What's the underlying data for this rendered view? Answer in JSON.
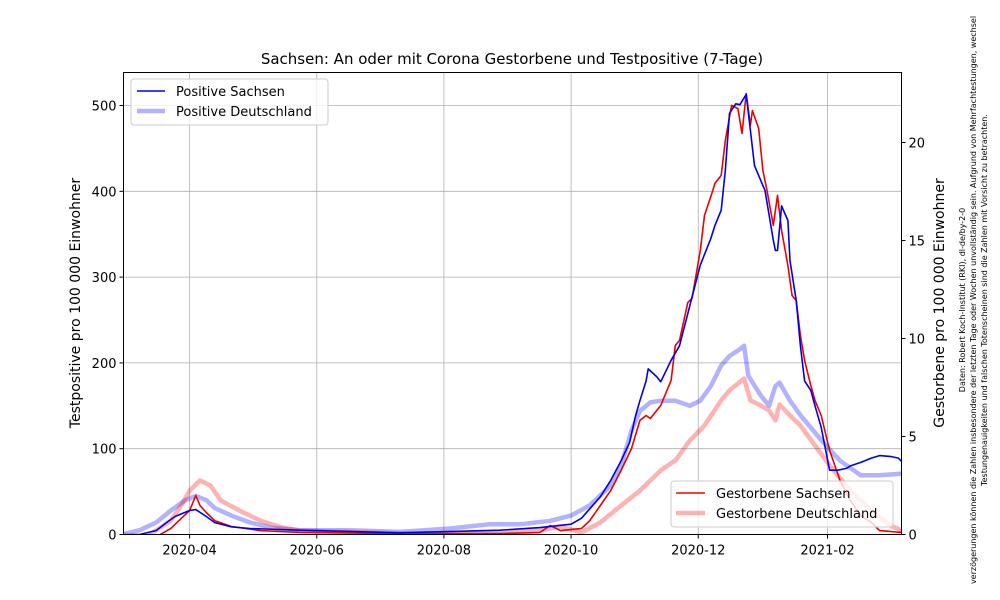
{
  "chart_data": {
    "type": "line",
    "title": "Sachsen: An oder mit Corona Gestorbene und Testpositive (7-Tage)",
    "ylabel": "Testpositive pro 100 000 Einwohner",
    "y2label": "Gestorbene pro 100 000 Einwohner",
    "x_unit": "days since 2020-03-01",
    "xlim": [
      -0.7,
      372.5
    ],
    "ylim": [
      0,
      538.5
    ],
    "y2lim": [
      0,
      23.57
    ],
    "grid": true,
    "xticks": [
      {
        "x": 31,
        "label": "2020-04"
      },
      {
        "x": 92,
        "label": "2020-06"
      },
      {
        "x": 153,
        "label": "2020-08"
      },
      {
        "x": 214,
        "label": "2020-10"
      },
      {
        "x": 275,
        "label": "2020-12"
      },
      {
        "x": 337,
        "label": "2021-02"
      }
    ],
    "yticks": [
      0,
      100,
      200,
      300,
      400,
      500
    ],
    "y2ticks": [
      0,
      5,
      10,
      15,
      20
    ],
    "legends": [
      {
        "placement": "top-left",
        "entries": [
          "Positive Sachsen",
          "Positive Deutschland"
        ]
      },
      {
        "placement": "bottom-right",
        "entries": [
          "Gestorbene Sachsen",
          "Gestorbene Deutschland"
        ]
      }
    ],
    "series": [
      {
        "name": "Positive Sachsen",
        "axis": "left",
        "color": "#0000ee",
        "width": 1.6,
        "opacity": 1,
        "x": [
          0,
          7,
          15,
          20,
          24,
          31,
          34,
          39,
          43,
          51,
          60,
          84,
          132,
          180,
          199,
          214,
          219,
          223,
          228,
          233,
          238,
          242,
          245,
          247,
          250,
          251,
          255,
          257,
          262,
          266,
          271,
          276,
          281,
          283,
          286,
          288,
          290,
          293,
          295,
          298,
          300,
          302,
          307,
          311,
          312,
          313,
          315,
          318,
          319,
          322,
          324,
          326,
          329,
          331,
          334,
          338,
          342,
          346,
          348,
          353,
          358,
          362,
          367,
          371,
          373
        ],
        "y": [
          0,
          0,
          4.7,
          14,
          21,
          28,
          29,
          21,
          14,
          9,
          7,
          5,
          2,
          5,
          8,
          12,
          19,
          30,
          44,
          63,
          86,
          107,
          139,
          156,
          179,
          193,
          184,
          178,
          203,
          220,
          267,
          314,
          345,
          360,
          378,
          424,
          491,
          502,
          501,
          513,
          471,
          430,
          401,
          343,
          331,
          331,
          383,
          366,
          319,
          273,
          220,
          179,
          168,
          150,
          125,
          75,
          75,
          77,
          80,
          84,
          89,
          92,
          91,
          89,
          84
        ]
      },
      {
        "name": "Positive Deutschland",
        "axis": "left",
        "color": "#0000ff",
        "width": 4.5,
        "opacity": 0.3,
        "x": [
          0,
          7,
          15,
          22,
          29,
          34,
          39,
          43,
          51,
          60,
          70,
          84,
          108,
          132,
          156,
          175,
          190,
          204,
          214,
          223,
          233,
          238,
          243,
          247,
          252,
          257,
          264,
          271,
          276,
          281,
          286,
          290,
          295,
          297,
          299,
          305,
          309,
          312,
          314,
          319,
          324,
          334,
          343,
          353,
          362,
          373
        ],
        "y": [
          1,
          5,
          14,
          28,
          40,
          45,
          40,
          31,
          22,
          14,
          8,
          5,
          5,
          3,
          7,
          12,
          12,
          16,
          22,
          34,
          57,
          80,
          121,
          144,
          154,
          156,
          156,
          150,
          156,
          173,
          197,
          208,
          216,
          220,
          185,
          162,
          150,
          173,
          177,
          156,
          139,
          110,
          86,
          69,
          69,
          71
        ]
      },
      {
        "name": "Gestorbene Sachsen",
        "axis": "right",
        "color": "#ee0000",
        "width": 1.6,
        "opacity": 1,
        "x": [
          17,
          22,
          27,
          31,
          34,
          36,
          39,
          43,
          51,
          65,
          84,
          132,
          180,
          199,
          204,
          209,
          219,
          223,
          228,
          233,
          238,
          243,
          247,
          250,
          252,
          257,
          262,
          264,
          266,
          270,
          272,
          276,
          278,
          282,
          283,
          286,
          288,
          291,
          294,
          296,
          298,
          300,
          301,
          304,
          306,
          308,
          311,
          313,
          315,
          318,
          320,
          322,
          324,
          326,
          329,
          331,
          334,
          338,
          343,
          348,
          353,
          358,
          362,
          373
        ],
        "y": [
          0,
          0.31,
          0.82,
          1.22,
          1.99,
          1.48,
          1.12,
          0.71,
          0.41,
          0.2,
          0.1,
          0.05,
          0.05,
          0.1,
          0.46,
          0.2,
          0.31,
          0.71,
          1.48,
          2.24,
          3.27,
          4.39,
          5.82,
          6.07,
          5.92,
          6.58,
          7.86,
          9.64,
          9.9,
          11.84,
          12.04,
          14.49,
          16.28,
          17.55,
          17.91,
          18.32,
          20.1,
          21.89,
          21.73,
          20.46,
          22.5,
          20.87,
          21.63,
          20.71,
          18.57,
          17.55,
          15.77,
          17.3,
          15.51,
          13.72,
          12.19,
          11.94,
          10.15,
          8.88,
          7.6,
          6.84,
          6.07,
          4.29,
          2.76,
          1.73,
          0.97,
          0.61,
          0.2,
          0.1
        ]
      },
      {
        "name": "Gestorbene Deutschland",
        "axis": "right",
        "color": "#ff0000",
        "width": 4.5,
        "opacity": 0.3,
        "x": [
          12,
          22,
          27,
          31,
          36,
          41,
          46,
          55,
          65,
          75,
          84,
          132,
          180,
          199,
          209,
          219,
          228,
          238,
          247,
          257,
          264,
          271,
          278,
          286,
          290,
          297,
          300,
          305,
          309,
          312,
          314,
          319,
          324,
          331,
          338,
          348,
          358,
          367,
          373
        ],
        "y": [
          0,
          0.71,
          1.48,
          2.24,
          2.76,
          2.5,
          1.73,
          1.22,
          0.71,
          0.36,
          0.2,
          0.05,
          0.05,
          0.2,
          0.41,
          0.1,
          0.61,
          1.48,
          2.24,
          3.27,
          3.78,
          4.8,
          5.56,
          6.84,
          7.35,
          7.96,
          6.84,
          6.58,
          6.33,
          5.82,
          6.63,
          6.07,
          5.56,
          4.54,
          3.52,
          2.24,
          1.22,
          0.46,
          0.2
        ]
      }
    ]
  },
  "source_note": {
    "lines": [
      "Daten: Robert Koch-Institut (RKI), dl-de/by-2-0",
      "verzögerungen können die Zahlen insbesondere der letzten Tage oder Wochen unvollständig sein. Aufgrund von Mehrfachtestungen, wechsel",
      "Testungenauigkeiten und falschen Totenscheinen sind die Zahlen mit Vorsicht zu betrachten."
    ]
  }
}
